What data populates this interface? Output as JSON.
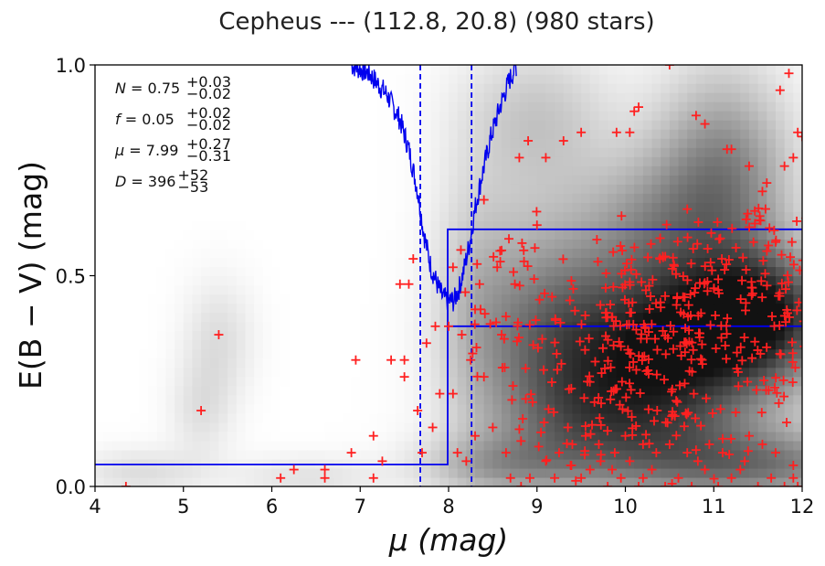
{
  "chart_data": {
    "type": "scatter",
    "title": "Cepheus --- (112.8, 20.8) (980 stars)",
    "xlabel": "μ (mag)",
    "ylabel": "E(B − V) (mag)",
    "xlim": [
      4,
      12
    ],
    "ylim": [
      0,
      1
    ],
    "xticks": [
      "4",
      "5",
      "6",
      "7",
      "8",
      "9",
      "10",
      "11",
      "12"
    ],
    "yticks": [
      "0.0",
      "0.5",
      "1.0"
    ],
    "grid": false,
    "background": "grayscale density map of star positions",
    "colors": {
      "stars": "#ff2020",
      "model": "#0000ee",
      "frame": "#000000"
    },
    "annotations": [
      {
        "symbol": "N",
        "value": "0.75",
        "upper": "+0.03",
        "lower": "−0.02"
      },
      {
        "symbol": "f",
        "value": "0.05",
        "upper": "+0.02",
        "lower": "−0.02"
      },
      {
        "symbol": "μ",
        "value": "7.99",
        "upper": "+0.27",
        "lower": "−0.31"
      },
      {
        "symbol": "D",
        "value": "396",
        "upper": "+52",
        "lower": "−53"
      }
    ],
    "dashed_vlines": [
      7.68,
      8.26
    ],
    "step_model": {
      "x": [
        4.0,
        7.99,
        7.99,
        12.0
      ],
      "y": [
        0.052,
        0.052,
        0.38,
        0.38
      ]
    },
    "step_envelope": {
      "x": [
        7.99,
        7.99,
        12.0
      ],
      "y": [
        0.38,
        0.61,
        0.61
      ]
    },
    "chi2_curve_anchor": {
      "x": [
        6.9,
        7.1,
        7.3,
        7.45,
        7.55,
        7.65,
        7.72,
        7.8,
        7.87,
        7.93,
        8.0,
        8.06,
        8.12,
        8.18,
        8.24,
        8.3,
        8.38,
        8.48,
        8.58,
        8.68,
        8.77
      ],
      "y": [
        1.0,
        0.98,
        0.93,
        0.87,
        0.8,
        0.7,
        0.6,
        0.52,
        0.48,
        0.45,
        0.44,
        0.44,
        0.47,
        0.52,
        0.58,
        0.66,
        0.74,
        0.83,
        0.9,
        0.96,
        1.0
      ]
    },
    "density_blobs": [
      {
        "x": 10.6,
        "y": 0.35,
        "sx": 1.0,
        "sy": 0.13,
        "amp": 0.92
      },
      {
        "x": 11.6,
        "y": 0.42,
        "sx": 0.55,
        "sy": 0.1,
        "amp": 0.55
      },
      {
        "x": 10.0,
        "y": 0.14,
        "sx": 0.9,
        "sy": 0.11,
        "amp": 0.55
      },
      {
        "x": 11.1,
        "y": 0.72,
        "sx": 0.55,
        "sy": 0.18,
        "amp": 0.55
      },
      {
        "x": 10.2,
        "y": 0.62,
        "sx": 0.55,
        "sy": 0.12,
        "amp": 0.3
      },
      {
        "x": 9.1,
        "y": 0.38,
        "sx": 0.55,
        "sy": 0.22,
        "amp": 0.38
      },
      {
        "x": 8.3,
        "y": 0.45,
        "sx": 0.35,
        "sy": 0.22,
        "amp": 0.2
      },
      {
        "x": 5.4,
        "y": 0.35,
        "sx": 0.28,
        "sy": 0.1,
        "amp": 0.14
      },
      {
        "x": 5.2,
        "y": 0.18,
        "sx": 0.25,
        "sy": 0.08,
        "amp": 0.12
      },
      {
        "x": 4.5,
        "y": 0.035,
        "sx": 0.5,
        "sy": 0.04,
        "amp": 0.14
      },
      {
        "x": 11.6,
        "y": 0.05,
        "sx": 1.0,
        "sy": 0.06,
        "amp": 0.5
      },
      {
        "x": 9.0,
        "y": 0.88,
        "sx": 0.6,
        "sy": 0.12,
        "amp": 0.22
      },
      {
        "x": 8.5,
        "y": 0.05,
        "sx": 0.6,
        "sy": 0.05,
        "amp": 0.28
      },
      {
        "x": 6.4,
        "y": 0.02,
        "sx": 0.6,
        "sy": 0.04,
        "amp": 0.12
      }
    ],
    "stars": [
      [
        4.35,
        0.0
      ],
      [
        5.2,
        0.18
      ],
      [
        5.4,
        0.36
      ],
      [
        6.1,
        0.02
      ],
      [
        6.25,
        0.04
      ],
      [
        6.6,
        0.04
      ],
      [
        6.6,
        0.02
      ],
      [
        6.9,
        0.08
      ],
      [
        6.95,
        0.3
      ],
      [
        7.15,
        0.02
      ],
      [
        7.15,
        0.12
      ],
      [
        7.25,
        0.06
      ],
      [
        7.35,
        0.3
      ],
      [
        7.45,
        0.48
      ],
      [
        7.5,
        0.26
      ],
      [
        7.5,
        0.3
      ],
      [
        7.55,
        0.48
      ],
      [
        7.6,
        0.54
      ],
      [
        7.65,
        0.18
      ],
      [
        7.7,
        0.08
      ],
      [
        7.75,
        0.34
      ],
      [
        7.82,
        0.14
      ],
      [
        7.85,
        0.38
      ],
      [
        7.9,
        0.22
      ],
      [
        8.0,
        0.38
      ],
      [
        8.05,
        0.22
      ],
      [
        8.1,
        0.08
      ],
      [
        8.2,
        0.06
      ],
      [
        8.25,
        0.3
      ],
      [
        8.3,
        0.42
      ],
      [
        8.35,
        0.48
      ],
      [
        8.4,
        0.68
      ],
      [
        8.55,
        0.52
      ],
      [
        8.6,
        0.56
      ],
      [
        8.65,
        0.08
      ],
      [
        8.7,
        0.02
      ],
      [
        8.75,
        0.48
      ],
      [
        8.8,
        0.78
      ],
      [
        8.85,
        0.56
      ],
      [
        8.9,
        0.82
      ],
      [
        9.0,
        0.62
      ],
      [
        9.1,
        0.78
      ],
      [
        9.3,
        0.82
      ],
      [
        9.5,
        0.84
      ],
      [
        9.9,
        0.84
      ],
      [
        10.05,
        0.84
      ],
      [
        10.1,
        0.89
      ],
      [
        10.15,
        0.9
      ],
      [
        10.5,
        1.0
      ],
      [
        10.8,
        0.88
      ],
      [
        10.9,
        0.86
      ],
      [
        11.15,
        0.8
      ],
      [
        11.2,
        0.8
      ],
      [
        11.55,
        0.7
      ],
      [
        11.75,
        0.94
      ],
      [
        11.85,
        0.98
      ],
      [
        11.95,
        0.84
      ],
      [
        12.0,
        0.83
      ],
      [
        11.4,
        0.76
      ],
      [
        11.6,
        0.72
      ],
      [
        11.8,
        0.76
      ],
      [
        11.9,
        0.78
      ],
      [
        8.05,
        0.52
      ],
      [
        8.15,
        0.36
      ],
      [
        8.4,
        0.26
      ],
      [
        8.5,
        0.14
      ],
      [
        8.3,
        0.12
      ],
      [
        8.6,
        0.36
      ],
      [
        8.95,
        0.2
      ],
      [
        8.82,
        0.0
      ],
      [
        8.92,
        0.02
      ],
      [
        9.1,
        0.06
      ],
      [
        9.2,
        0.02
      ],
      [
        9.25,
        0.08
      ],
      [
        9.35,
        0.14
      ],
      [
        9.38,
        0.05
      ],
      [
        9.5,
        0.02
      ],
      [
        9.6,
        0.04
      ],
      [
        9.65,
        0.2
      ],
      [
        9.7,
        0.1
      ],
      [
        9.8,
        0.0
      ],
      [
        9.85,
        0.04
      ],
      [
        9.95,
        0.02
      ],
      [
        10.05,
        0.06
      ],
      [
        10.15,
        0.0
      ],
      [
        10.2,
        0.02
      ],
      [
        10.3,
        0.04
      ],
      [
        10.45,
        0.0
      ],
      [
        10.6,
        0.02
      ],
      [
        10.75,
        0.0
      ],
      [
        10.9,
        0.04
      ],
      [
        11.05,
        0.0
      ],
      [
        11.2,
        0.02
      ],
      [
        11.35,
        0.06
      ],
      [
        11.5,
        0.0
      ],
      [
        11.65,
        0.02
      ],
      [
        11.8,
        0.0
      ],
      [
        11.9,
        0.02
      ],
      [
        11.95,
        0.0
      ],
      [
        11.9,
        0.05
      ],
      [
        11.7,
        0.08
      ],
      [
        11.55,
        0.1
      ],
      [
        11.4,
        0.12
      ],
      [
        11.3,
        0.04
      ],
      [
        11.1,
        0.08
      ],
      [
        10.95,
        0.1
      ],
      [
        10.82,
        0.06
      ],
      [
        10.7,
        0.08
      ],
      [
        10.5,
        0.1
      ],
      [
        10.35,
        0.08
      ],
      [
        10.2,
        0.1
      ],
      [
        10.0,
        0.12
      ],
      [
        9.88,
        0.08
      ],
      [
        9.72,
        0.06
      ],
      [
        9.55,
        0.12
      ],
      [
        9.4,
        0.1
      ]
    ]
  }
}
